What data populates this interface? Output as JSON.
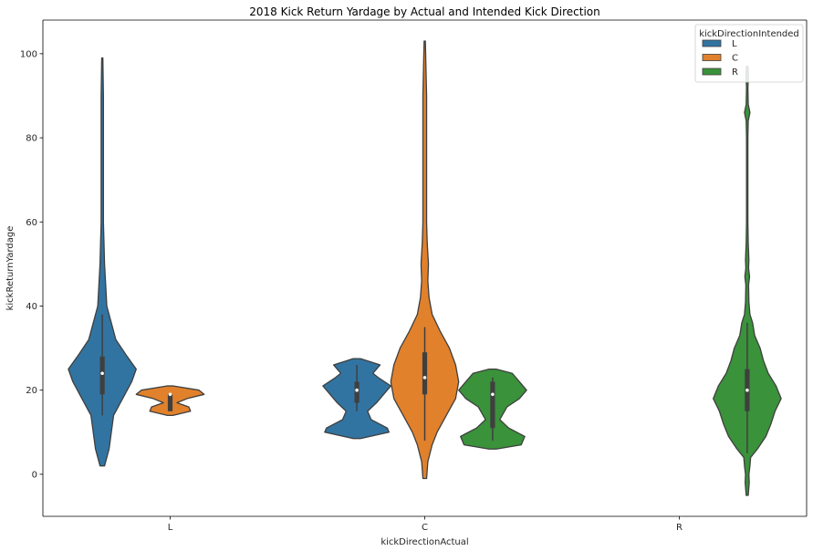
{
  "chart_data": {
    "type": "violin",
    "title": "2018 Kick Return Yardage by Actual and Intended Kick Direction",
    "xlabel": "kickDirectionActual",
    "ylabel": "kickReturnYardage",
    "categories": [
      "L",
      "C",
      "R"
    ],
    "ylim": [
      -10,
      108
    ],
    "yticks": [
      0,
      20,
      40,
      60,
      80,
      100
    ],
    "grid": false,
    "legend": {
      "title": "kickDirectionIntended",
      "placement": "top-right",
      "entries": [
        "L",
        "C",
        "R"
      ]
    },
    "colors": {
      "L": "#3274a1",
      "C": "#e1812c",
      "R": "#3a923a",
      "box": "#3f3f3f",
      "edge": "#3f3f3f"
    },
    "violins": [
      {
        "category": "L",
        "hue": "L",
        "median": 24,
        "q1": 19,
        "q3": 28,
        "whisker_low": 14,
        "whisker_high": 38,
        "profile": [
          [
            2,
            0.02
          ],
          [
            6,
            0.06
          ],
          [
            10,
            0.08
          ],
          [
            14,
            0.1
          ],
          [
            18,
            0.18
          ],
          [
            22,
            0.26
          ],
          [
            25,
            0.3
          ],
          [
            28,
            0.22
          ],
          [
            32,
            0.12
          ],
          [
            36,
            0.08
          ],
          [
            40,
            0.04
          ],
          [
            45,
            0.03
          ],
          [
            50,
            0.02
          ],
          [
            55,
            0.015
          ],
          [
            60,
            0.01
          ],
          [
            70,
            0.01
          ],
          [
            80,
            0.01
          ],
          [
            90,
            0.01
          ],
          [
            99,
            0.005
          ]
        ]
      },
      {
        "category": "L",
        "hue": "C",
        "median": 19,
        "q1": 15,
        "q3": 19,
        "whisker_low": 15,
        "whisker_high": 19,
        "profile": [
          [
            14,
            0.08
          ],
          [
            15,
            0.6
          ],
          [
            16,
            0.55
          ],
          [
            17,
            0.2
          ],
          [
            18,
            0.5
          ],
          [
            19,
            1.0
          ],
          [
            20,
            0.85
          ],
          [
            21,
            0.1
          ]
        ]
      },
      {
        "category": "C",
        "hue": "L",
        "median": 20,
        "q1": 17,
        "q3": 22,
        "whisker_low": 15,
        "whisker_high": 26,
        "profile": [
          [
            8.5,
            0.1
          ],
          [
            10,
            0.9
          ],
          [
            11,
            0.85
          ],
          [
            13,
            0.4
          ],
          [
            15,
            0.3
          ],
          [
            17,
            0.55
          ],
          [
            19,
            0.75
          ],
          [
            21,
            0.95
          ],
          [
            23,
            0.6
          ],
          [
            24,
            0.45
          ],
          [
            26,
            0.65
          ],
          [
            27.5,
            0.1
          ]
        ]
      },
      {
        "category": "C",
        "hue": "C",
        "median": 23,
        "q1": 19,
        "q3": 29,
        "whisker_low": 8,
        "whisker_high": 35,
        "profile": [
          [
            -1,
            0.03
          ],
          [
            3,
            0.05
          ],
          [
            7,
            0.12
          ],
          [
            10,
            0.2
          ],
          [
            14,
            0.35
          ],
          [
            18,
            0.5
          ],
          [
            22,
            0.55
          ],
          [
            26,
            0.5
          ],
          [
            30,
            0.4
          ],
          [
            34,
            0.25
          ],
          [
            38,
            0.12
          ],
          [
            42,
            0.07
          ],
          [
            46,
            0.05
          ],
          [
            50,
            0.06
          ],
          [
            55,
            0.04
          ],
          [
            60,
            0.03
          ],
          [
            70,
            0.03
          ],
          [
            80,
            0.03
          ],
          [
            90,
            0.03
          ],
          [
            103,
            0.01
          ]
        ]
      },
      {
        "category": "C",
        "hue": "R",
        "median": 19,
        "q1": 11,
        "q3": 22,
        "whisker_low": 8,
        "whisker_high": 23,
        "profile": [
          [
            6,
            0.1
          ],
          [
            7,
            0.8
          ],
          [
            9,
            0.9
          ],
          [
            11,
            0.45
          ],
          [
            13,
            0.2
          ],
          [
            16,
            0.4
          ],
          [
            18,
            0.75
          ],
          [
            20,
            0.95
          ],
          [
            22,
            0.75
          ],
          [
            24,
            0.55
          ],
          [
            25,
            0.1
          ]
        ]
      },
      {
        "category": "R",
        "hue": "R",
        "median": 20,
        "q1": 15,
        "q3": 25,
        "whisker_low": 5,
        "whisker_high": 36,
        "profile": [
          [
            -5,
            0.03
          ],
          [
            -2,
            0.06
          ],
          [
            0,
            0.05
          ],
          [
            2,
            0.08
          ],
          [
            4,
            0.1
          ],
          [
            6,
            0.3
          ],
          [
            9,
            0.55
          ],
          [
            12,
            0.7
          ],
          [
            15,
            0.82
          ],
          [
            18,
            1.0
          ],
          [
            21,
            0.85
          ],
          [
            24,
            0.62
          ],
          [
            27,
            0.48
          ],
          [
            30,
            0.38
          ],
          [
            33,
            0.22
          ],
          [
            36,
            0.16
          ],
          [
            38,
            0.08
          ],
          [
            41,
            0.05
          ],
          [
            45,
            0.04
          ],
          [
            47,
            0.07
          ],
          [
            49,
            0.04
          ],
          [
            51,
            0.05
          ],
          [
            55,
            0.03
          ],
          [
            60,
            0.02
          ],
          [
            70,
            0.02
          ],
          [
            80,
            0.02
          ],
          [
            84,
            0.03
          ],
          [
            86,
            0.08
          ],
          [
            88,
            0.03
          ],
          [
            92,
            0.02
          ],
          [
            95,
            0.04
          ],
          [
            97,
            0.02
          ]
        ]
      }
    ]
  }
}
